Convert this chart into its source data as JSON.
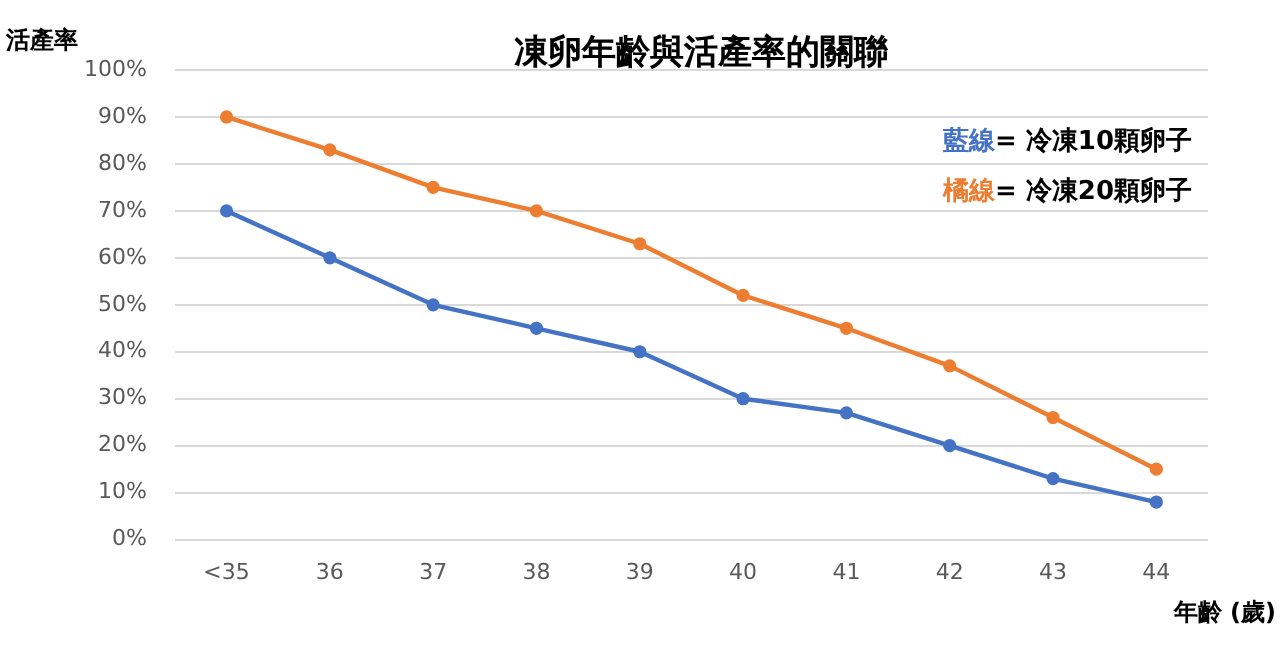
{
  "chart_data": {
    "type": "line",
    "title": "凍卵年齡與活產率的關聯",
    "xlabel": "年齡 (歲)",
    "ylabel": "活產率",
    "categories": [
      "<35",
      "36",
      "37",
      "38",
      "39",
      "40",
      "41",
      "42",
      "43",
      "44"
    ],
    "series": [
      {
        "name": "藍線= 冷凍10顆卵子",
        "color": "#4472c4",
        "values": [
          70,
          60,
          50,
          45,
          40,
          30,
          27,
          20,
          13,
          8
        ]
      },
      {
        "name": "橘線= 冷凍20顆卵子",
        "color": "#ed7d31",
        "values": [
          90,
          83,
          75,
          70,
          63,
          52,
          45,
          37,
          26,
          15
        ]
      }
    ],
    "ylim": [
      0,
      100
    ],
    "yticks": [
      {
        "value": 0,
        "label": "0%"
      },
      {
        "value": 10,
        "label": "10%"
      },
      {
        "value": 20,
        "label": "20%"
      },
      {
        "value": 30,
        "label": "30%"
      },
      {
        "value": 40,
        "label": "40%"
      },
      {
        "value": 50,
        "label": "50%"
      },
      {
        "value": 60,
        "label": "60%"
      },
      {
        "value": 70,
        "label": "70%"
      },
      {
        "value": 80,
        "label": "80%"
      },
      {
        "value": 90,
        "label": "90%"
      },
      {
        "value": 100,
        "label": "100%"
      }
    ],
    "grid": "y",
    "legend": "top right",
    "marker": "circle",
    "line_style": "solid"
  }
}
